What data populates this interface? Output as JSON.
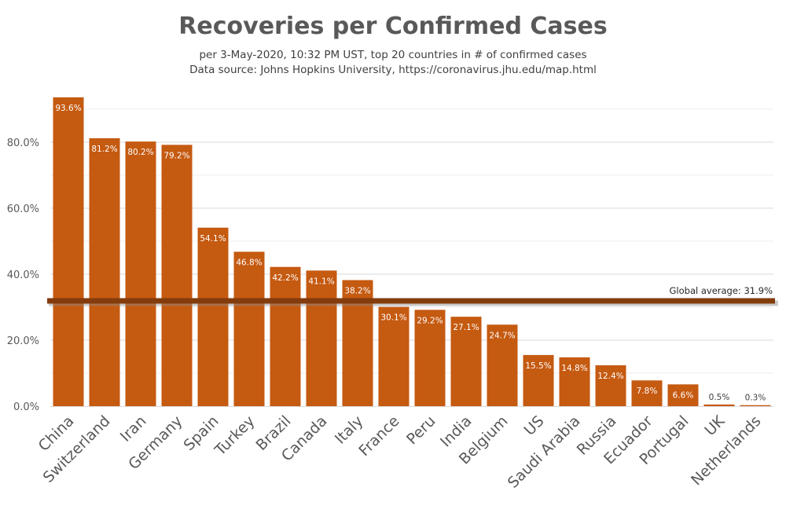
{
  "title": "Recoveries per Confirmed Cases",
  "subtitle": "per 3-May-2020, 10:32 PM UST, top 20 countries in # of confirmed cases",
  "source": "Data source: Johns Hopkins University, https://coronavirus.jhu.edu/map.html",
  "colors": {
    "bar": "#C55A11",
    "average_line": "#843C0C",
    "grid": "#D9D9D9",
    "label_inside": "#FFFFFF",
    "label_outside": "#404040",
    "axis_text": "#595959"
  },
  "chart_data": {
    "type": "bar",
    "categories": [
      "China",
      "Switzerland",
      "Iran",
      "Germany",
      "Spain",
      "Turkey",
      "Brazil",
      "Canada",
      "Italy",
      "France",
      "Peru",
      "India",
      "Belgium",
      "US",
      "Saudi Arabia",
      "Russia",
      "Ecuador",
      "Portugal",
      "UK",
      "Netherlands"
    ],
    "values": [
      93.6,
      81.2,
      80.2,
      79.2,
      54.1,
      46.8,
      42.2,
      41.1,
      38.2,
      30.1,
      29.2,
      27.1,
      24.7,
      15.5,
      14.8,
      12.4,
      7.8,
      6.6,
      0.5,
      0.3
    ],
    "data_labels": [
      "93.6%",
      "81.2%",
      "80.2%",
      "79.2%",
      "54.1%",
      "46.8%",
      "42.2%",
      "41.1%",
      "38.2%",
      "30.1%",
      "29.2%",
      "27.1%",
      "24.7%",
      "15.5%",
      "14.8%",
      "12.4%",
      "7.8%",
      "6.6%",
      "0.5%",
      "0.3%"
    ],
    "yticks": [
      0,
      20,
      40,
      60,
      80
    ],
    "ytick_labels": [
      "0.0%",
      "20.0%",
      "40.0%",
      "60.0%",
      "80.0%"
    ],
    "ylim": [
      0,
      95
    ],
    "grid": true,
    "reference_line": {
      "value": 31.9,
      "label": "Global average: 31.9%"
    }
  }
}
